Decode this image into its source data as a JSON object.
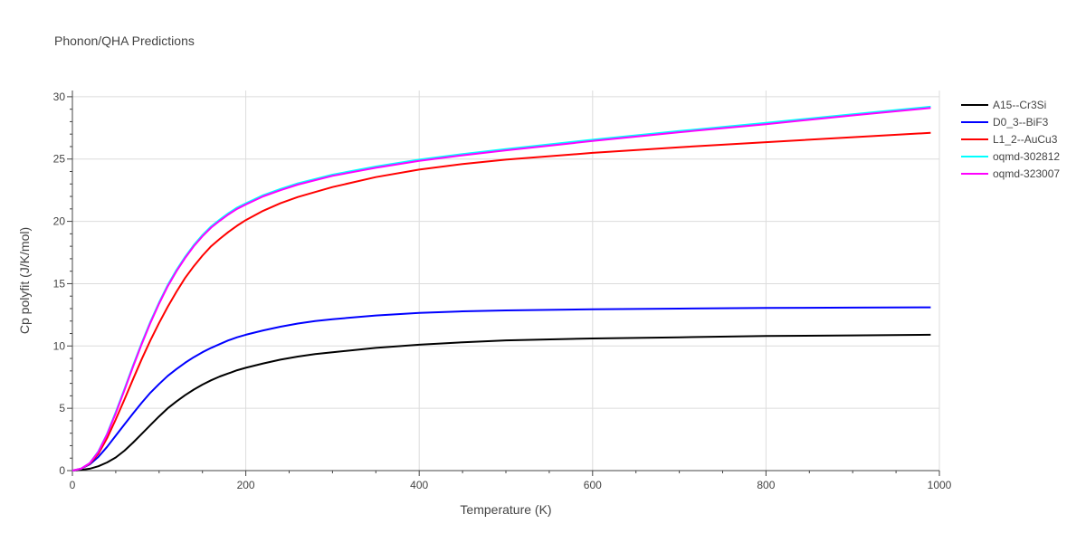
{
  "chart_data": {
    "type": "line",
    "title": "Phonon/QHA Predictions",
    "xlabel": "Temperature (K)",
    "ylabel": "Cp polyfit (J/K/mol)",
    "xlim": [
      0,
      1000
    ],
    "ylim": [
      0,
      30.5
    ],
    "xticks": [
      0,
      200,
      400,
      600,
      800,
      1000
    ],
    "yticks": [
      0,
      5,
      10,
      15,
      20,
      25,
      30
    ],
    "grid": true,
    "legend_position": "top-right, outside plot",
    "series": [
      {
        "name": "A15--Cr3Si",
        "color": "#000000",
        "x": [
          0,
          10,
          20,
          30,
          40,
          50,
          60,
          70,
          80,
          90,
          100,
          110,
          120,
          130,
          140,
          150,
          160,
          170,
          180,
          190,
          200,
          220,
          240,
          260,
          280,
          300,
          350,
          400,
          450,
          500,
          600,
          700,
          800,
          900,
          990
        ],
        "y": [
          0,
          0.05,
          0.15,
          0.35,
          0.65,
          1.05,
          1.6,
          2.25,
          2.95,
          3.65,
          4.35,
          5.0,
          5.55,
          6.05,
          6.5,
          6.9,
          7.25,
          7.55,
          7.8,
          8.05,
          8.25,
          8.6,
          8.9,
          9.15,
          9.35,
          9.5,
          9.85,
          10.1,
          10.3,
          10.45,
          10.6,
          10.7,
          10.8,
          10.85,
          10.9
        ]
      },
      {
        "name": "D0_3--BiF3",
        "color": "#0000ff",
        "x": [
          0,
          10,
          20,
          30,
          40,
          50,
          60,
          70,
          80,
          90,
          100,
          110,
          120,
          130,
          140,
          150,
          160,
          170,
          180,
          190,
          200,
          220,
          240,
          260,
          280,
          300,
          350,
          400,
          450,
          500,
          600,
          700,
          800,
          900,
          990
        ],
        "y": [
          0,
          0.15,
          0.5,
          1.1,
          1.9,
          2.8,
          3.7,
          4.6,
          5.45,
          6.25,
          6.95,
          7.6,
          8.15,
          8.65,
          9.1,
          9.5,
          9.85,
          10.15,
          10.45,
          10.7,
          10.9,
          11.25,
          11.55,
          11.8,
          12.0,
          12.15,
          12.45,
          12.65,
          12.78,
          12.85,
          12.95,
          13.0,
          13.05,
          13.08,
          13.1
        ]
      },
      {
        "name": "L1_2--AuCu3",
        "color": "#ff0000",
        "x": [
          0,
          10,
          20,
          30,
          40,
          50,
          60,
          70,
          80,
          90,
          100,
          110,
          120,
          130,
          140,
          150,
          160,
          170,
          180,
          190,
          200,
          220,
          240,
          260,
          280,
          300,
          350,
          400,
          450,
          500,
          600,
          700,
          800,
          900,
          990
        ],
        "y": [
          0,
          0.15,
          0.55,
          1.35,
          2.6,
          4.1,
          5.7,
          7.35,
          8.95,
          10.45,
          11.85,
          13.15,
          14.35,
          15.45,
          16.4,
          17.25,
          18.0,
          18.6,
          19.15,
          19.65,
          20.1,
          20.85,
          21.45,
          21.95,
          22.35,
          22.75,
          23.55,
          24.15,
          24.6,
          24.95,
          25.5,
          25.95,
          26.35,
          26.75,
          27.1
        ]
      },
      {
        "name": "oqmd-302812",
        "color": "#00ffff",
        "x": [
          0,
          10,
          20,
          30,
          40,
          50,
          60,
          70,
          80,
          90,
          100,
          110,
          120,
          130,
          140,
          150,
          160,
          170,
          180,
          190,
          200,
          220,
          240,
          260,
          280,
          300,
          350,
          400,
          450,
          500,
          600,
          700,
          800,
          900,
          990
        ],
        "y": [
          0,
          0.15,
          0.6,
          1.55,
          2.95,
          4.7,
          6.55,
          8.45,
          10.25,
          11.95,
          13.5,
          14.9,
          16.1,
          17.15,
          18.1,
          18.9,
          19.6,
          20.15,
          20.65,
          21.1,
          21.45,
          22.1,
          22.6,
          23.05,
          23.4,
          23.75,
          24.4,
          24.95,
          25.4,
          25.8,
          26.55,
          27.25,
          27.9,
          28.6,
          29.2
        ]
      },
      {
        "name": "oqmd-323007",
        "color": "#ff00ff",
        "x": [
          0,
          10,
          20,
          30,
          40,
          50,
          60,
          70,
          80,
          90,
          100,
          110,
          120,
          130,
          140,
          150,
          160,
          170,
          180,
          190,
          200,
          220,
          240,
          260,
          280,
          300,
          350,
          400,
          450,
          500,
          600,
          700,
          800,
          900,
          990
        ],
        "y": [
          0,
          0.15,
          0.6,
          1.5,
          2.9,
          4.6,
          6.45,
          8.35,
          10.15,
          11.85,
          13.4,
          14.8,
          16.0,
          17.05,
          18.0,
          18.8,
          19.5,
          20.05,
          20.55,
          21.0,
          21.35,
          22.0,
          22.5,
          22.95,
          23.3,
          23.65,
          24.3,
          24.85,
          25.3,
          25.7,
          26.45,
          27.15,
          27.8,
          28.5,
          29.1
        ]
      }
    ]
  }
}
